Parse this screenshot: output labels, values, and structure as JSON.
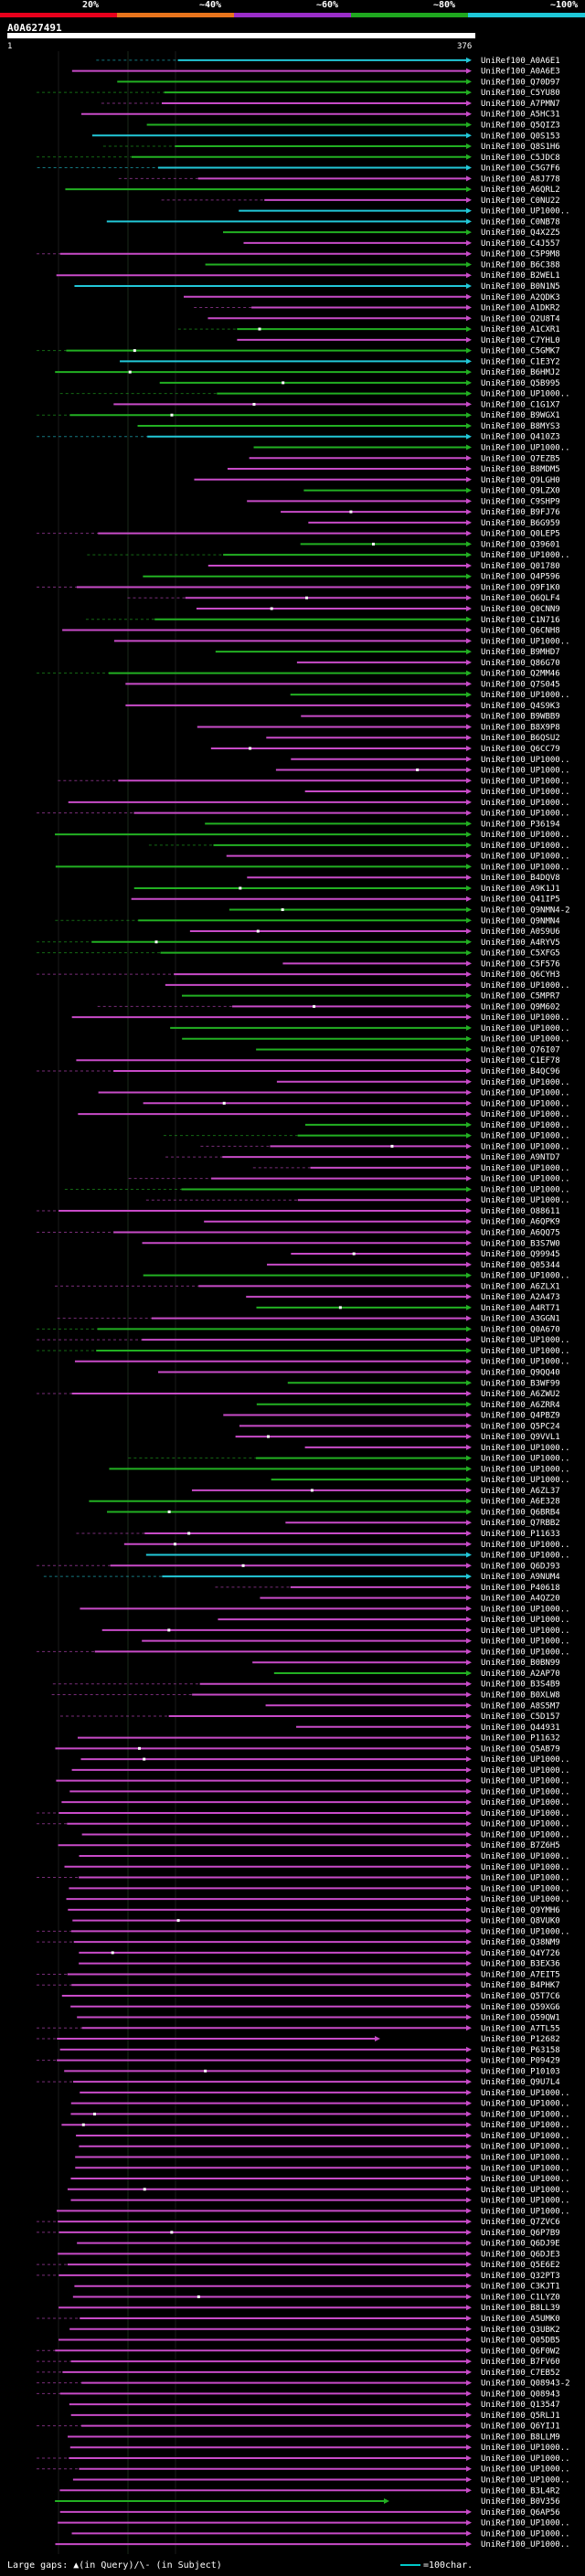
{
  "chart_data": {
    "type": "sequence-alignment",
    "query_id": "A0A627491",
    "query_length": 376,
    "axis_start_label": "1",
    "axis_end_label": "376",
    "identity_legend": [
      {
        "label": "20%",
        "color": "#e8001c"
      },
      {
        "label": "~40%",
        "color": "#e8741c"
      },
      {
        "label": "~60%",
        "color": "#9a2dc8"
      },
      {
        "label": "~80%",
        "color": "#1fa81f"
      },
      {
        "label": "~100%",
        "color": "#1ec8d8"
      }
    ],
    "footer_text": "Large gaps: ▲(in Query)/\\- (in Subject)",
    "scale_text": "=100char.",
    "hits": [
      "UniRef100_A0A6E1",
      "UniRef100_A0A6E3",
      "UniRef100_Q70D97",
      "UniRef100_C5YU80",
      "UniRef100_A7PMN7",
      "UniRef100_A5HC31",
      "UniRef100_Q5QIZ3",
      "UniRef100_Q0S153",
      "UniRef100_Q8S1H6",
      "UniRef100_C5JDC8",
      "UniRef100_C5G7F6",
      "UniRef100_A8J778",
      "UniRef100_A6QRL2",
      "UniRef100_C0NU22",
      "UniRef100_UP1000..",
      "UniRef100_C0NB78",
      "UniRef100_Q4X2Z5",
      "UniRef100_C4J557",
      "UniRef100_C5P9M8",
      "UniRef100_B6C388",
      "UniRef100_B2WEL1",
      "UniRef100_B0N1N5",
      "UniRef100_A2QDK3",
      "UniRef100_A1DKR2",
      "UniRef100_Q2U8T4",
      "UniRef100_A1CXR1",
      "UniRef100_C7YHL0",
      "UniRef100_C5GMK7",
      "UniRef100_C1E3Y2",
      "UniRef100_B6HMJ2",
      "UniRef100_Q5B995",
      "UniRef100_UP1000..",
      "UniRef100_C1G1X7",
      "UniRef100_B9WGX1",
      "UniRef100_B8MYS3",
      "UniRef100_Q410Z3",
      "UniRef100_UP1000..",
      "UniRef100_Q7EZB5",
      "UniRef100_B8MDM5",
      "UniRef100_Q9LGH0",
      "UniRef100_Q9LZX0",
      "UniRef100_C9SHP9",
      "UniRef100_B9FJ76",
      "UniRef100_B6G959",
      "UniRef100_Q0LEP5",
      "UniRef100_Q39601",
      "UniRef100_UP1000..",
      "UniRef100_Q01780",
      "UniRef100_Q4P596",
      "UniRef100_Q9F1K0",
      "UniRef100_Q6QLF4",
      "UniRef100_Q0CNN9",
      "UniRef100_C1N716",
      "UniRef100_Q6CNH8",
      "UniRef100_UP1000..",
      "UniRef100_B9MHD7",
      "UniRef100_Q86G70",
      "UniRef100_Q2MM46",
      "UniRef100_Q7S045",
      "UniRef100_UP1000..",
      "UniRef100_Q4S9K3",
      "UniRef100_B9WBB9",
      "UniRef100_B8X9P8",
      "UniRef100_B6QSU2",
      "UniRef100_Q6CC79",
      "UniRef100_UP1000..",
      "UniRef100_UP1000..",
      "UniRef100_UP1000..",
      "UniRef100_UP1000..",
      "UniRef100_UP1000..",
      "UniRef100_UP1000..",
      "UniRef100_P36194",
      "UniRef100_UP1000..",
      "UniRef100_UP1000..",
      "UniRef100_UP1000..",
      "UniRef100_UP1000..",
      "UniRef100_B4DQV8",
      "UniRef100_A9K1J1",
      "UniRef100_Q41IP5",
      "UniRef100_Q9NMN4-2",
      "UniRef100_Q9NMN4",
      "UniRef100_A0S9U6",
      "UniRef100_A4RYV5",
      "UniRef100_C5XFG5",
      "UniRef100_C5F576",
      "UniRef100_Q6CYH3",
      "UniRef100_UP1000..",
      "UniRef100_C5MPR7",
      "UniRef100_Q9M602",
      "UniRef100_UP1000..",
      "UniRef100_UP1000..",
      "UniRef100_UP1000..",
      "UniRef100_Q76I07",
      "UniRef100_C1EF78",
      "UniRef100_B4QC96",
      "UniRef100_UP1000..",
      "UniRef100_UP1000..",
      "UniRef100_UP1000..",
      "UniRef100_UP1000..",
      "UniRef100_UP1000..",
      "UniRef100_UP1000..",
      "UniRef100_UP1000..",
      "UniRef100_A9NTD7",
      "UniRef100_UP1000..",
      "UniRef100_UP1000..",
      "UniRef100_UP1000..",
      "UniRef100_UP1000..",
      "UniRef100_O88611",
      "UniRef100_A6QPK9",
      "UniRef100_A6QQ75",
      "UniRef100_B3S7W0",
      "UniRef100_Q99945",
      "UniRef100_Q05344",
      "UniRef100_UP1000..",
      "UniRef100_A6ZLX1",
      "UniRef100_A2A473",
      "UniRef100_A4RT71",
      "UniRef100_A3GGN1",
      "UniRef100_Q0A670",
      "UniRef100_UP1000..",
      "UniRef100_UP1000..",
      "UniRef100_UP1000..",
      "UniRef100_Q9QQ40",
      "UniRef100_B3WF99",
      "UniRef100_A6ZWU2",
      "UniRef100_A6ZRR4",
      "UniRef100_Q4PBZ9",
      "UniRef100_Q5PC24",
      "UniRef100_Q9VVL1",
      "UniRef100_UP1000..",
      "UniRef100_UP1000..",
      "UniRef100_UP1000..",
      "UniRef100_UP1000..",
      "UniRef100_A6ZL37",
      "UniRef100_A6E328",
      "UniRef100_Q6BRB4",
      "UniRef100_Q7RBB2",
      "UniRef100_P11633",
      "UniRef100_UP1000..",
      "UniRef100_UP1000..",
      "UniRef100_Q6DJ93",
      "UniRef100_A9NUM4",
      "UniRef100_P40618",
      "UniRef100_A4QZ20",
      "UniRef100_UP1000..",
      "UniRef100_UP1000..",
      "UniRef100_UP1000..",
      "UniRef100_UP1000..",
      "UniRef100_UP1000..",
      "UniRef100_B0BN99",
      "UniRef100_A2AP70",
      "UniRef100_B3S4B9",
      "UniRef100_B0XLW8",
      "UniRef100_A8S5M7",
      "UniRef100_C5D157",
      "UniRef100_Q44931",
      "UniRef100_P11632",
      "UniRef100_Q5AB79",
      "UniRef100_UP1000..",
      "UniRef100_UP1000..",
      "UniRef100_UP1000..",
      "UniRef100_UP1000..",
      "UniRef100_UP1000..",
      "UniRef100_UP1000..",
      "UniRef100_UP1000..",
      "UniRef100_UP1000..",
      "UniRef100_B7Z6H5",
      "UniRef100_UP1000..",
      "UniRef100_UP1000..",
      "UniRef100_UP1000..",
      "UniRef100_UP1000..",
      "UniRef100_UP1000..",
      "UniRef100_Q9YMH6",
      "UniRef100_Q8VUK0",
      "UniRef100_UP1000..",
      "UniRef100_Q38NM9",
      "UniRef100_Q4Y726",
      "UniRef100_B3EX36",
      "UniRef100_A7EIT5",
      "UniRef100_B4PHK7",
      "UniRef100_Q5T7C6",
      "UniRef100_Q59XG6",
      "UniRef100_Q59QW1",
      "UniRef100_A7TL55",
      "UniRef100_P12682",
      "UniRef100_P63158",
      "UniRef100_P09429",
      "UniRef100_P10103",
      "UniRef100_Q9U7L4",
      "UniRef100_UP1000..",
      "UniRef100_UP1000..",
      "UniRef100_UP1000..",
      "UniRef100_UP1000..",
      "UniRef100_UP1000..",
      "UniRef100_UP1000..",
      "UniRef100_UP1000..",
      "UniRef100_UP1000..",
      "UniRef100_UP1000..",
      "UniRef100_UP1000..",
      "UniRef100_UP1000..",
      "UniRef100_UP1000..",
      "UniRef100_Q7ZVC6",
      "UniRef100_Q6P7B9",
      "UniRef100_Q6DJ9E",
      "UniRef100_Q6DJE3",
      "UniRef100_Q5E6E2",
      "UniRef100_Q32PT3",
      "UniRef100_C3KJT1",
      "UniRef100_C1LYZ0",
      "UniRef100_B8LL39",
      "UniRef100_A5UMK0",
      "UniRef100_Q3UBK2",
      "UniRef100_Q05DB5",
      "UniRef100_Q6F0W2",
      "UniRef100_B7FV60",
      "UniRef100_C7EB52",
      "UniRef100_Q08943-2",
      "UniRef100_Q08943",
      "UniRef100_Q13547",
      "UniRef100_Q5RLJ1",
      "UniRef100_Q6YIJ1",
      "UniRef100_B8LLM9",
      "UniRef100_UP1000..",
      "UniRef100_UP1000..",
      "UniRef100_UP1000..",
      "UniRef100_UP1000..",
      "UniRef100_B3L4R2",
      "UniRef100_B0V356",
      "UniRef100_Q6AP56",
      "UniRef100_UP1000..",
      "UniRef100_UP1000..",
      "UniRef100_UP1000.."
    ]
  }
}
